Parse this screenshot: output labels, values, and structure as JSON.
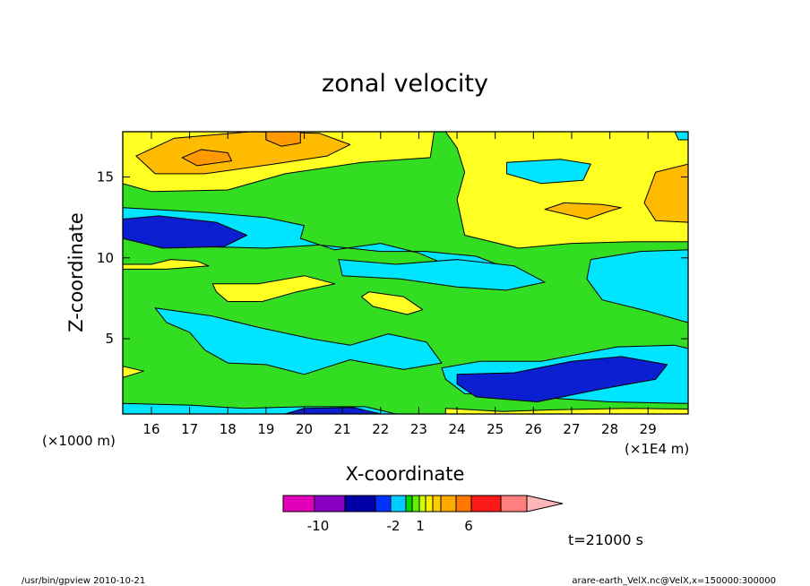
{
  "chart_data": {
    "type": "contour",
    "title": "zonal velocity",
    "xlabel": "X-coordinate",
    "ylabel": "Z-coordinate",
    "x_unit_label": "(×1E4 m)",
    "y_unit_label": "(×1000 m)",
    "xlim": [
      15.25,
      30.05
    ],
    "ylim": [
      0.35,
      17.8
    ],
    "x_ticks": [
      "16",
      "17",
      "18",
      "19",
      "20",
      "21",
      "22",
      "23",
      "24",
      "25",
      "26",
      "27",
      "28",
      "29"
    ],
    "y_ticks": [
      "5",
      "10",
      "15"
    ],
    "time_label": "t=21000 s",
    "footer_left": "/usr/bin/gpview   2010-10-21",
    "footer_right": "arare-earth_VelX.nc@VelX,x=150000:300000",
    "colorbar": {
      "colors": [
        "#e000b8",
        "#8a00c0",
        "#0000a6",
        "#0033ff",
        "#00ccff",
        "#00d900",
        "#66ee00",
        "#ccff00",
        "#ffee00",
        "#ffcc00",
        "#ffaa00",
        "#ff7700",
        "#ff1a1a",
        "#ff7f7f",
        "#ffb6b6"
      ],
      "labels": [
        "-10",
        "-2",
        "1",
        "6"
      ]
    },
    "regions": [
      {
        "name": "upper-yellow",
        "value": 1,
        "color": "#ffff22",
        "points": [
          [
            15.25,
            17.8
          ],
          [
            23.4,
            17.8
          ],
          [
            23.3,
            16.2
          ],
          [
            21.5,
            15.9
          ],
          [
            19.5,
            15.2
          ],
          [
            18,
            14.2
          ],
          [
            16,
            14.1
          ],
          [
            15.25,
            14.6
          ]
        ]
      },
      {
        "name": "upper-orange",
        "value": 3,
        "color": "#ffbb00",
        "points": [
          [
            15.6,
            16.3
          ],
          [
            16.6,
            17.4
          ],
          [
            18.6,
            17.8
          ],
          [
            20.4,
            17.7
          ],
          [
            21.2,
            17.0
          ],
          [
            20.6,
            16.3
          ],
          [
            19.2,
            15.8
          ],
          [
            17.4,
            15.2
          ],
          [
            16.1,
            15.2
          ]
        ]
      },
      {
        "name": "upper-dark-orange",
        "value": 5,
        "color": "#ff9900",
        "points": [
          [
            19.0,
            17.8
          ],
          [
            19.9,
            17.8
          ],
          [
            19.9,
            17.1
          ],
          [
            19.4,
            16.9
          ],
          [
            19.0,
            17.3
          ]
        ]
      },
      {
        "name": "upper-dark-orange-2",
        "value": 5,
        "color": "#ff9900",
        "points": [
          [
            16.8,
            16.2
          ],
          [
            17.3,
            16.7
          ],
          [
            18.0,
            16.5
          ],
          [
            18.1,
            16.0
          ],
          [
            17.2,
            15.7
          ]
        ]
      },
      {
        "name": "right-yellow",
        "value": 1,
        "color": "#ffff22",
        "points": [
          [
            23.7,
            17.8
          ],
          [
            30.05,
            17.8
          ],
          [
            30.05,
            11.0
          ],
          [
            28.6,
            11.0
          ],
          [
            27.0,
            10.9
          ],
          [
            25.6,
            10.6
          ],
          [
            24.2,
            11.4
          ],
          [
            24.0,
            13.6
          ],
          [
            24.2,
            15.3
          ],
          [
            24.0,
            16.8
          ]
        ]
      },
      {
        "name": "right-orange",
        "value": 3,
        "color": "#ffbb00",
        "points": [
          [
            29.2,
            15.3
          ],
          [
            30.05,
            15.8
          ],
          [
            30.05,
            12.2
          ],
          [
            29.2,
            12.3
          ],
          [
            28.9,
            13.4
          ]
        ]
      },
      {
        "name": "right-orange-2",
        "value": 3,
        "color": "#ffbb00",
        "points": [
          [
            26.3,
            13.0
          ],
          [
            27.4,
            12.4
          ],
          [
            28.0,
            12.9
          ],
          [
            28.3,
            13.1
          ],
          [
            27.8,
            13.3
          ],
          [
            26.8,
            13.4
          ]
        ]
      },
      {
        "name": "cyan-upper-right",
        "value": -1,
        "color": "#00e5ff",
        "points": [
          [
            25.3,
            15.9
          ],
          [
            26.7,
            16.1
          ],
          [
            27.5,
            15.8
          ],
          [
            27.3,
            14.8
          ],
          [
            26.2,
            14.6
          ],
          [
            25.3,
            15.2
          ]
        ]
      },
      {
        "name": "cyan-top-right-corner",
        "value": -1,
        "color": "#00e5ff",
        "points": [
          [
            29.7,
            17.8
          ],
          [
            30.05,
            17.8
          ],
          [
            30.05,
            17.3
          ],
          [
            29.8,
            17.3
          ]
        ]
      },
      {
        "name": "left-cyan",
        "value": -1,
        "color": "#00e5ff",
        "points": [
          [
            15.25,
            13.1
          ],
          [
            17.5,
            12.8
          ],
          [
            19.0,
            12.5
          ],
          [
            20.0,
            12.0
          ],
          [
            19.9,
            11.2
          ],
          [
            20.8,
            10.5
          ],
          [
            22.0,
            10.9
          ],
          [
            23.0,
            10.3
          ],
          [
            23.9,
            9.4
          ],
          [
            24.9,
            8.8
          ],
          [
            26.0,
            8.4
          ],
          [
            25.6,
            9.1
          ],
          [
            24.5,
            10.1
          ],
          [
            23.2,
            10.4
          ],
          [
            22.0,
            10.4
          ],
          [
            20.4,
            10.8
          ],
          [
            19.0,
            10.6
          ],
          [
            17.3,
            10.7
          ],
          [
            16.0,
            11.0
          ],
          [
            15.25,
            11.5
          ]
        ]
      },
      {
        "name": "cyan-middle-band",
        "value": -1,
        "color": "#00e5ff",
        "points": [
          [
            20.9,
            9.9
          ],
          [
            22.4,
            9.6
          ],
          [
            24.0,
            9.9
          ],
          [
            25.5,
            9.5
          ],
          [
            26.3,
            8.5
          ],
          [
            25.3,
            8.0
          ],
          [
            24.0,
            8.2
          ],
          [
            22.5,
            8.7
          ],
          [
            21.0,
            8.9
          ]
        ]
      },
      {
        "name": "cyan-right-band",
        "value": -1,
        "color": "#00e5ff",
        "points": [
          [
            27.5,
            9.9
          ],
          [
            28.8,
            10.4
          ],
          [
            30.05,
            10.5
          ],
          [
            30.05,
            6.0
          ],
          [
            29.0,
            6.7
          ],
          [
            27.8,
            7.4
          ],
          [
            27.4,
            8.7
          ]
        ]
      },
      {
        "name": "left-blue",
        "value": -3,
        "color": "#0b1fd0",
        "points": [
          [
            15.25,
            12.4
          ],
          [
            16.2,
            12.6
          ],
          [
            17.7,
            12.2
          ],
          [
            18.5,
            11.4
          ],
          [
            17.9,
            10.7
          ],
          [
            16.3,
            10.6
          ],
          [
            15.25,
            11.2
          ]
        ]
      },
      {
        "name": "cyan-lower",
        "value": -1,
        "color": "#00e5ff",
        "points": [
          [
            16.1,
            6.9
          ],
          [
            17.6,
            6.4
          ],
          [
            18.8,
            5.7
          ],
          [
            20.2,
            5.0
          ],
          [
            21.2,
            4.6
          ],
          [
            22.2,
            5.3
          ],
          [
            23.2,
            4.8
          ],
          [
            23.6,
            3.5
          ],
          [
            22.6,
            3.1
          ],
          [
            21.2,
            3.7
          ],
          [
            20.0,
            2.8
          ],
          [
            19.0,
            3.4
          ],
          [
            18.0,
            3.5
          ],
          [
            17.4,
            4.3
          ],
          [
            17.0,
            5.4
          ],
          [
            16.4,
            6.0
          ]
        ]
      },
      {
        "name": "bottom-cyan",
        "value": -1,
        "color": "#00e5ff",
        "points": [
          [
            23.6,
            3.2
          ],
          [
            24.6,
            3.6
          ],
          [
            26.2,
            3.6
          ],
          [
            28.2,
            4.5
          ],
          [
            29.7,
            4.6
          ],
          [
            30.05,
            4.4
          ],
          [
            30.05,
            1.0
          ],
          [
            28.0,
            1.1
          ],
          [
            26.0,
            1.4
          ],
          [
            24.2,
            1.6
          ],
          [
            23.7,
            2.5
          ]
        ]
      },
      {
        "name": "bottom-blue",
        "value": -3,
        "color": "#0b1fd0",
        "points": [
          [
            24.0,
            2.8
          ],
          [
            25.5,
            2.9
          ],
          [
            27.0,
            3.6
          ],
          [
            28.3,
            3.9
          ],
          [
            29.5,
            3.4
          ],
          [
            29.2,
            2.5
          ],
          [
            27.8,
            1.9
          ],
          [
            26.1,
            1.1
          ],
          [
            24.5,
            1.4
          ],
          [
            24.0,
            2.2
          ]
        ]
      },
      {
        "name": "bottom-left-cyan",
        "value": -1,
        "color": "#00e5ff",
        "points": [
          [
            15.25,
            1.0
          ],
          [
            17.0,
            0.9
          ],
          [
            18.4,
            0.7
          ],
          [
            20.0,
            0.8
          ],
          [
            21.6,
            0.8
          ],
          [
            22.4,
            0.35
          ],
          [
            15.25,
            0.35
          ]
        ]
      },
      {
        "name": "bottom-blue-strip",
        "value": -3,
        "color": "#0b1fd0",
        "points": [
          [
            19.5,
            0.35
          ],
          [
            22.0,
            0.35
          ],
          [
            21.3,
            0.75
          ],
          [
            20.0,
            0.7
          ]
        ]
      },
      {
        "name": "yellow-mid-left",
        "value": 1,
        "color": "#ffff22",
        "points": [
          [
            17.6,
            8.4
          ],
          [
            18.8,
            8.4
          ],
          [
            20.0,
            8.9
          ],
          [
            20.8,
            8.4
          ],
          [
            19.8,
            7.9
          ],
          [
            18.9,
            7.3
          ],
          [
            18.0,
            7.3
          ],
          [
            17.7,
            7.9
          ]
        ]
      },
      {
        "name": "yellow-mid-center",
        "value": 1,
        "color": "#ffff22",
        "points": [
          [
            21.7,
            7.9
          ],
          [
            22.6,
            7.6
          ],
          [
            23.1,
            6.8
          ],
          [
            22.7,
            6.5
          ],
          [
            21.8,
            7.0
          ],
          [
            21.5,
            7.6
          ]
        ]
      },
      {
        "name": "bottom-yellow",
        "value": 1,
        "color": "#ffff22",
        "points": [
          [
            23.7,
            0.7
          ],
          [
            25.2,
            0.5
          ],
          [
            26.4,
            0.6
          ],
          [
            28.5,
            0.7
          ],
          [
            30.05,
            0.65
          ],
          [
            30.05,
            0.35
          ],
          [
            23.7,
            0.35
          ]
        ]
      },
      {
        "name": "left-yellow-strip",
        "value": 1,
        "color": "#ffff22",
        "points": [
          [
            15.25,
            9.6
          ],
          [
            16.0,
            9.6
          ],
          [
            16.5,
            9.9
          ],
          [
            17.2,
            9.8
          ],
          [
            17.5,
            9.5
          ],
          [
            16.4,
            9.3
          ],
          [
            15.25,
            9.3
          ]
        ]
      },
      {
        "name": "left-yellow-strip-2",
        "value": 1,
        "color": "#ffff22",
        "points": [
          [
            15.25,
            3.3
          ],
          [
            15.8,
            3.0
          ],
          [
            15.25,
            2.6
          ]
        ]
      }
    ]
  }
}
